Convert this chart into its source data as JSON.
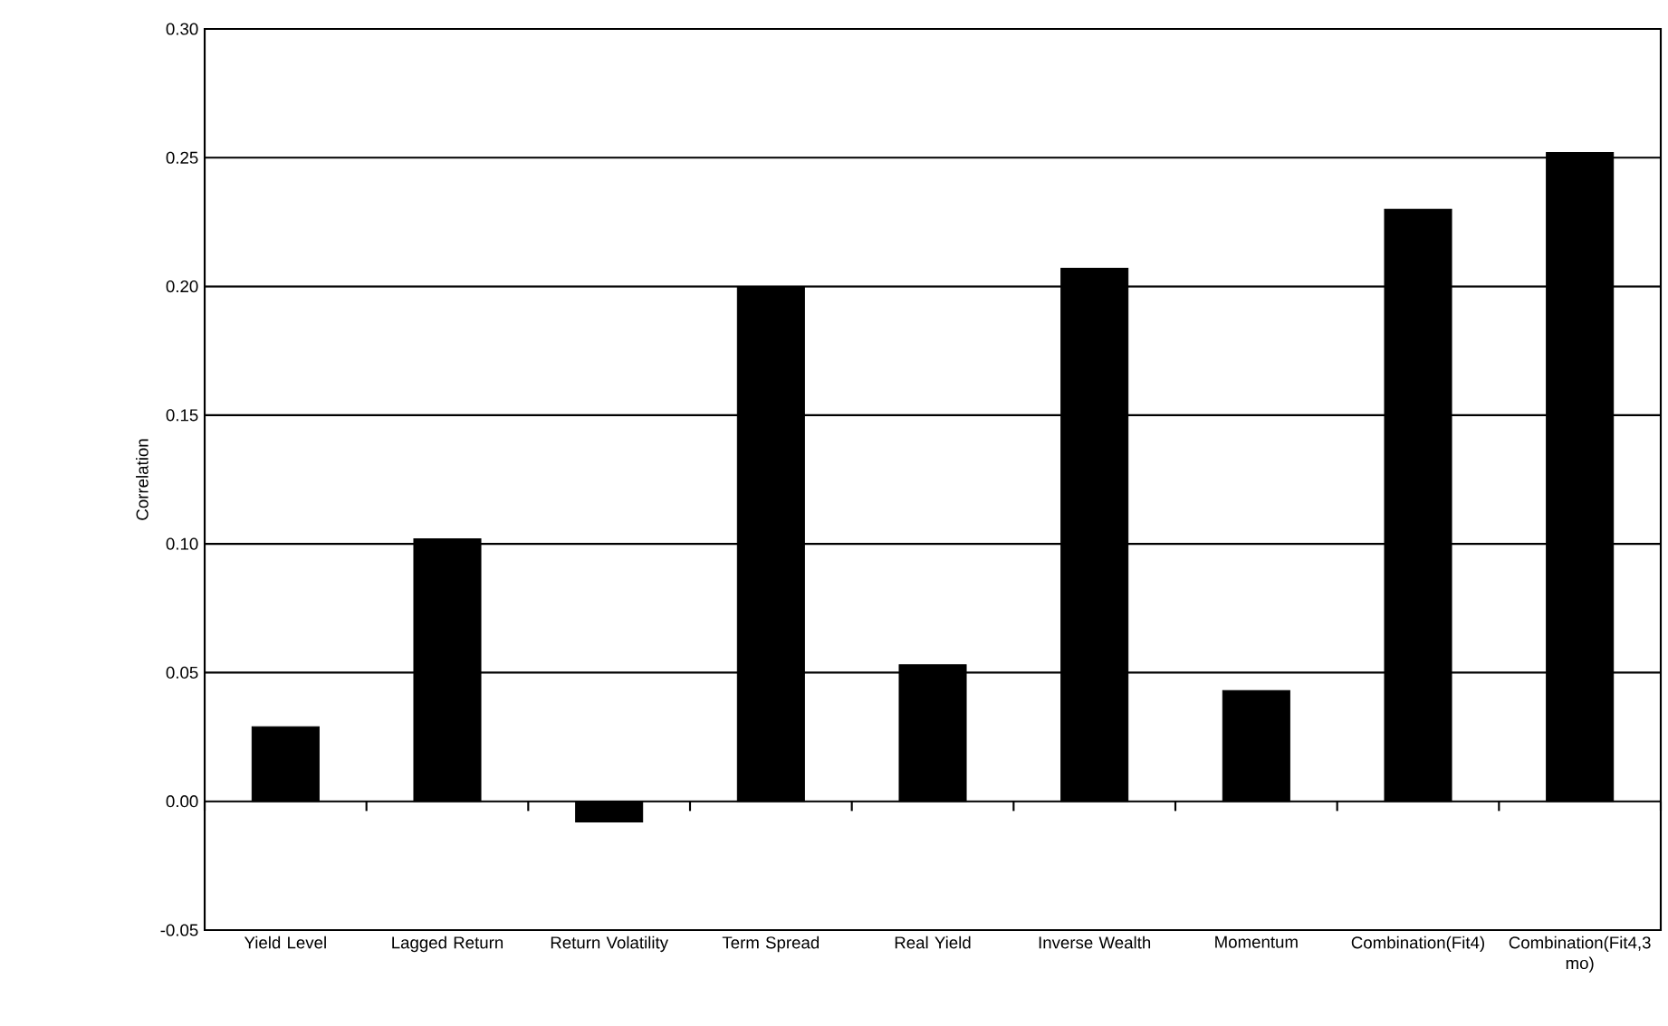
{
  "chart_data": {
    "type": "bar",
    "ylabel": "Correlation",
    "categories": [
      "Yield Level",
      "Lagged Return",
      "Return Volatility",
      "Term Spread",
      "Real Yield",
      "Inverse Wealth",
      "Momentum",
      "Combination(Fit4)",
      "Combination(Fit4,3 mo)"
    ],
    "values": [
      0.029,
      0.102,
      -0.008,
      0.2,
      0.053,
      0.207,
      0.043,
      0.23,
      0.252
    ],
    "color": "#000000",
    "ylim": [
      -0.05,
      0.3
    ],
    "yticks": [
      {
        "value": -0.05,
        "label": "-0.05"
      },
      {
        "value": 0,
        "label": "0.00"
      },
      {
        "value": 0.05,
        "label": "0.05"
      },
      {
        "value": 0.1,
        "label": "0.10"
      },
      {
        "value": 0.15,
        "label": "0.15"
      },
      {
        "value": 0.2,
        "label": "0.20"
      },
      {
        "value": 0.25,
        "label": "0.25"
      },
      {
        "value": 0.3,
        "label": "0.30"
      }
    ],
    "grid": "y"
  }
}
